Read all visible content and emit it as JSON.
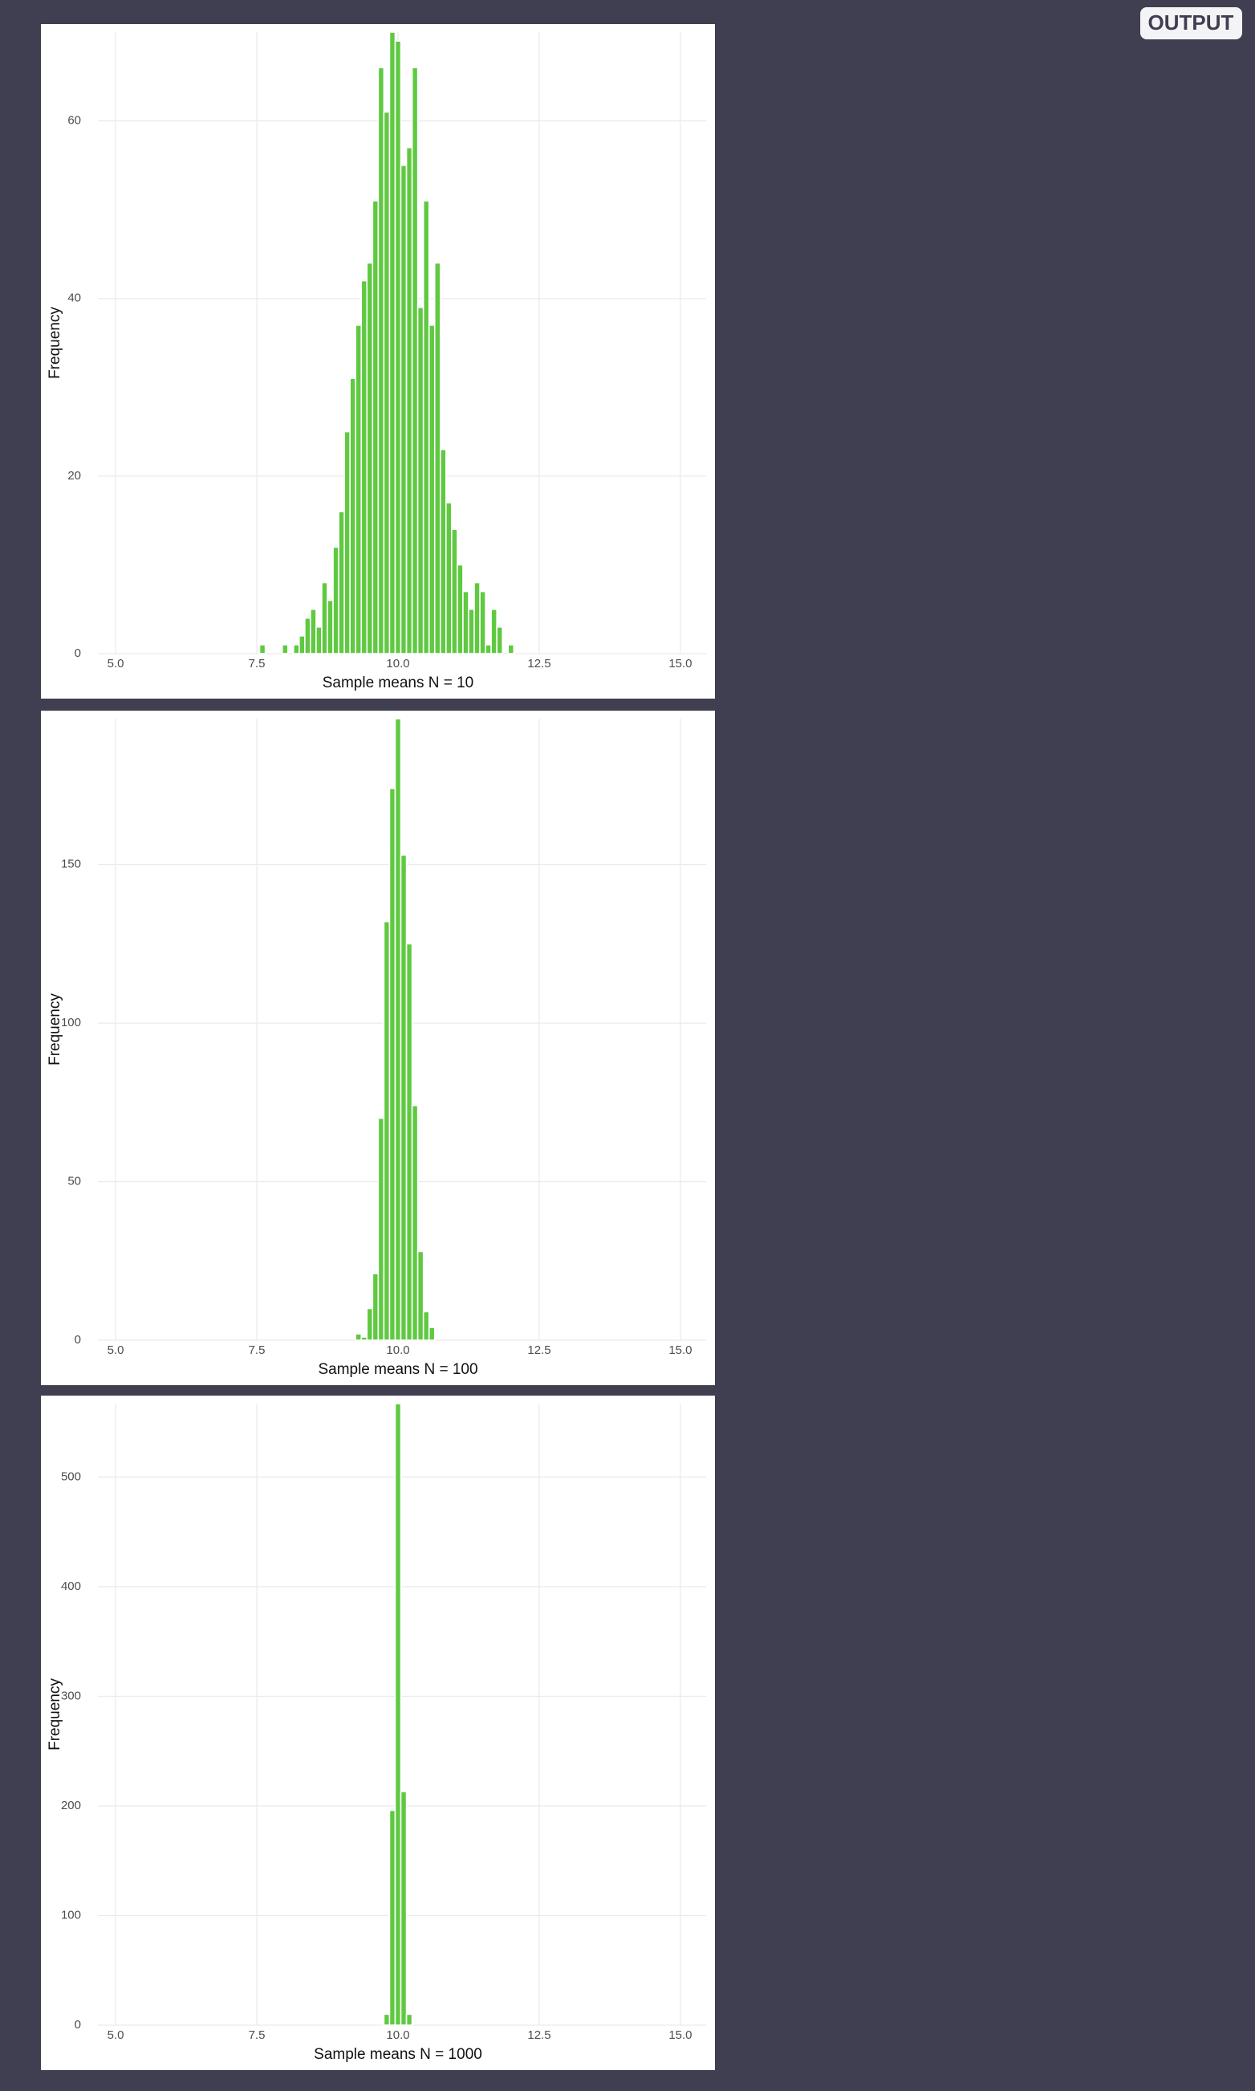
{
  "output_label": "OUTPUT",
  "chart_data": [
    {
      "type": "histogram",
      "x_label": "Sample means N = 10",
      "y_label": "Frequency",
      "color": "#5fc941",
      "bins": [
        7.55,
        7.65,
        7.75,
        7.85,
        7.95,
        8.05,
        8.15,
        8.25,
        8.35,
        8.45,
        8.55,
        8.65,
        8.75,
        8.85,
        8.95,
        9.05,
        9.15,
        9.25,
        9.35,
        9.45,
        9.55,
        9.65,
        9.75,
        9.85,
        9.95,
        10.05,
        10.15,
        10.25,
        10.35,
        10.45,
        10.55,
        10.65,
        10.75,
        10.85,
        10.95,
        11.05,
        11.15,
        11.25,
        11.35,
        11.45,
        11.55,
        11.65,
        11.75,
        11.85,
        11.95,
        12.05
      ],
      "values": [
        1,
        0,
        0,
        0,
        1,
        0,
        1,
        2,
        4,
        5,
        3,
        8,
        6,
        12,
        16,
        25,
        31,
        37,
        42,
        44,
        51,
        66,
        61,
        70,
        69,
        55,
        57,
        66,
        39,
        51,
        37,
        44,
        23,
        17,
        14,
        10,
        7,
        5,
        8,
        7,
        1,
        5,
        3,
        0,
        1
      ],
      "xlim": [
        4.8,
        15.2
      ],
      "xticks": [
        {
          "value": 5,
          "label": "5.0"
        },
        7.5,
        {
          "value": 10,
          "label": "10.0"
        },
        12.5,
        {
          "value": 15,
          "label": "15.0"
        }
      ],
      "ylim": [
        0,
        70
      ],
      "yticks": [
        0,
        20,
        40,
        60
      ],
      "grid": true
    },
    {
      "type": "histogram",
      "x_label": "Sample means N = 100",
      "y_label": "Frequency",
      "color": "#5fc941",
      "bins": [
        9.25,
        9.35,
        9.45,
        9.55,
        9.65,
        9.75,
        9.85,
        9.95,
        10.05,
        10.15,
        10.25,
        10.35,
        10.45,
        10.55,
        10.65
      ],
      "values": [
        2,
        1,
        10,
        21,
        70,
        132,
        174,
        196,
        153,
        125,
        74,
        28,
        9,
        4
      ],
      "xlim": [
        4.8,
        15.2
      ],
      "xticks": [
        {
          "value": 5,
          "label": "5.0"
        },
        7.5,
        {
          "value": 10,
          "label": "10.0"
        },
        12.5,
        {
          "value": 15,
          "label": "15.0"
        }
      ],
      "ylim": [
        0,
        196
      ],
      "yticks": [
        0,
        50,
        100,
        150
      ],
      "grid": true
    },
    {
      "type": "histogram",
      "x_label": "Sample means N = 1000",
      "y_label": "Frequency",
      "color": "#5fc941",
      "bins": [
        9.75,
        9.85,
        9.95,
        10.05,
        10.15,
        10.25
      ],
      "values": [
        10,
        196,
        567,
        213,
        10
      ],
      "xlim": [
        4.8,
        15.2
      ],
      "xticks": [
        {
          "value": 5,
          "label": "5.0"
        },
        7.5,
        {
          "value": 10,
          "label": "10.0"
        },
        12.5,
        {
          "value": 15,
          "label": "15.0"
        }
      ],
      "ylim": [
        0,
        567
      ],
      "yticks": [
        0,
        100,
        200,
        300,
        400,
        500
      ],
      "grid": true
    }
  ]
}
